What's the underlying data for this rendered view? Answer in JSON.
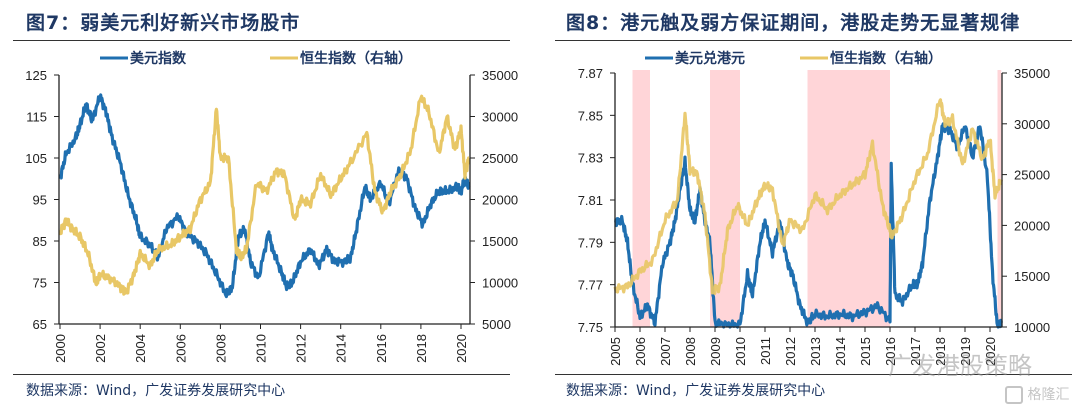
{
  "figure7": {
    "title": "图7：弱美元利好新兴市场股市",
    "source": "数据来源：Wind，广发证券发展研究中心"
  },
  "figure8": {
    "title": "图8：港元触及弱方保证期间，港股走势无显著规律",
    "source": "数据来源：Wind，广发证券发展研究中心"
  },
  "watermark": {
    "text": "广发港股策略",
    "logo_text": "格隆汇"
  },
  "colors": {
    "blue": "#1f6fb0",
    "yellow": "#e8c766",
    "band": "#ffd5d8",
    "axis": "#222222"
  },
  "chart_data": [
    {
      "type": "line",
      "title": "图7：弱美元利好新兴市场股市",
      "xlabel": "",
      "ylabel": "",
      "xlim": [
        2000,
        2020.5
      ],
      "ylim": [
        65,
        125
      ],
      "y2lim": [
        5000,
        35000
      ],
      "x_ticks": [
        "2000",
        "2002",
        "2004",
        "2006",
        "2008",
        "2010",
        "2012",
        "2014",
        "2016",
        "2018",
        "2020"
      ],
      "y_ticks": [
        "125",
        "115",
        "105",
        "95",
        "85",
        "75",
        "65"
      ],
      "y2_ticks": [
        "35000",
        "30000",
        "25000",
        "20000",
        "15000",
        "10000",
        "5000"
      ],
      "legend": [
        "美元指数",
        "恒生指数（右轴）"
      ],
      "legend_position": "top-center",
      "grid": false,
      "series": [
        {
          "name": "美元指数",
          "axis": "left",
          "color": "#1f6fb0",
          "x": [
            2000.0,
            2000.3,
            2000.8,
            2001.0,
            2001.3,
            2001.6,
            2002.0,
            2002.3,
            2002.6,
            2003.0,
            2003.4,
            2003.8,
            2004.0,
            2004.5,
            2004.9,
            2005.3,
            2005.9,
            2006.3,
            2006.8,
            2007.3,
            2007.8,
            2008.3,
            2008.6,
            2008.9,
            2009.2,
            2009.5,
            2009.9,
            2010.4,
            2010.6,
            2011.0,
            2011.3,
            2011.6,
            2012.0,
            2012.5,
            2012.9,
            2013.3,
            2013.7,
            2014.2,
            2014.5,
            2014.8,
            2015.2,
            2015.5,
            2016.0,
            2016.4,
            2016.9,
            2017.3,
            2017.7,
            2018.1,
            2018.5,
            2018.9,
            2019.3,
            2019.8,
            2020.0,
            2020.2,
            2020.4
          ],
          "values": [
            100,
            106,
            110,
            113,
            118,
            114,
            120,
            116,
            110,
            104,
            96,
            90,
            86,
            84,
            81,
            88,
            91,
            87,
            85,
            82,
            77,
            72,
            74,
            86,
            88,
            80,
            76,
            87,
            83,
            78,
            74,
            75,
            80,
            83,
            79,
            83,
            80,
            80,
            81,
            88,
            98,
            95,
            99,
            94,
            102,
            100,
            93,
            89,
            94,
            97,
            97,
            98,
            97,
            100,
            98
          ]
        },
        {
          "name": "恒生指数（右轴）",
          "axis": "right",
          "color": "#e8c766",
          "x": [
            2000.0,
            2000.3,
            2000.6,
            2001.0,
            2001.4,
            2001.8,
            2002.0,
            2002.5,
            2003.0,
            2003.3,
            2003.7,
            2004.0,
            2004.5,
            2004.9,
            2005.5,
            2006.0,
            2006.5,
            2007.0,
            2007.5,
            2007.8,
            2008.0,
            2008.4,
            2008.8,
            2009.0,
            2009.3,
            2009.8,
            2010.3,
            2010.8,
            2011.2,
            2011.7,
            2012.0,
            2012.5,
            2013.0,
            2013.5,
            2014.0,
            2014.5,
            2015.3,
            2015.7,
            2016.1,
            2016.5,
            2017.0,
            2017.5,
            2018.0,
            2018.4,
            2018.9,
            2019.3,
            2019.7,
            2020.0,
            2020.2,
            2020.4
          ],
          "values": [
            16000,
            17500,
            16500,
            15500,
            13500,
            9800,
            11000,
            10500,
            9500,
            8800,
            11000,
            13500,
            12000,
            14000,
            14500,
            15500,
            16500,
            20000,
            22000,
            31000,
            25000,
            25000,
            14000,
            13000,
            14000,
            22000,
            21000,
            23500,
            23000,
            17500,
            20000,
            19500,
            23000,
            20500,
            22500,
            24500,
            28000,
            21000,
            18500,
            21000,
            23000,
            26000,
            32500,
            30500,
            25500,
            30000,
            26000,
            28500,
            23000,
            25000
          ]
        }
      ]
    },
    {
      "type": "line",
      "title": "图8：港元触及弱方保证期间，港股走势无显著规律",
      "xlabel": "",
      "ylabel": "",
      "xlim": [
        2005,
        2020.5
      ],
      "ylim": [
        7.75,
        7.87
      ],
      "y2lim": [
        10000,
        35000
      ],
      "x_ticks": [
        "2005",
        "2006",
        "2007",
        "2008",
        "2009",
        "2010",
        "2011",
        "2012",
        "2013",
        "2014",
        "2015",
        "2016",
        "2017",
        "2018",
        "2019",
        "2020"
      ],
      "y_ticks": [
        "7.87",
        "7.85",
        "7.83",
        "7.81",
        "7.79",
        "7.77",
        "7.75"
      ],
      "y2_ticks": [
        "35000",
        "30000",
        "25000",
        "20000",
        "15000",
        "10000"
      ],
      "legend": [
        "美元兑港元",
        "恒生指数（右轴）"
      ],
      "legend_position": "top-center",
      "grid": false,
      "shaded_periods": [
        [
          2005.7,
          2006.4
        ],
        [
          2008.8,
          2010.0
        ],
        [
          2012.7,
          2016.0
        ],
        [
          2020.3,
          2020.45
        ]
      ],
      "series": [
        {
          "name": "美元兑港元",
          "axis": "left",
          "color": "#1f6fb0",
          "x": [
            2005.0,
            2005.3,
            2005.5,
            2005.7,
            2006.0,
            2006.3,
            2006.6,
            2006.9,
            2007.2,
            2007.4,
            2007.6,
            2007.8,
            2008.0,
            2008.2,
            2008.4,
            2008.6,
            2008.8,
            2009.0,
            2009.5,
            2010.0,
            2010.3,
            2010.5,
            2010.8,
            2011.0,
            2011.3,
            2011.6,
            2011.9,
            2012.1,
            2012.4,
            2012.7,
            2013.0,
            2013.5,
            2014.0,
            2014.5,
            2015.0,
            2015.5,
            2016.0,
            2016.05,
            2016.2,
            2016.5,
            2016.9,
            2017.1,
            2017.3,
            2017.6,
            2017.9,
            2018.1,
            2018.4,
            2018.7,
            2019.0,
            2019.3,
            2019.6,
            2019.9,
            2020.1,
            2020.3,
            2020.45
          ],
          "values": [
            7.8,
            7.8,
            7.79,
            7.77,
            7.755,
            7.76,
            7.752,
            7.78,
            7.79,
            7.8,
            7.815,
            7.828,
            7.805,
            7.8,
            7.815,
            7.8,
            7.79,
            7.752,
            7.751,
            7.751,
            7.775,
            7.765,
            7.79,
            7.8,
            7.785,
            7.8,
            7.78,
            7.775,
            7.76,
            7.752,
            7.756,
            7.755,
            7.756,
            7.755,
            7.757,
            7.76,
            7.753,
            7.826,
            7.765,
            7.762,
            7.77,
            7.77,
            7.78,
            7.81,
            7.83,
            7.845,
            7.843,
            7.835,
            7.845,
            7.83,
            7.845,
            7.82,
            7.775,
            7.75,
            7.752
          ]
        },
        {
          "name": "恒生指数（右轴）",
          "axis": "right",
          "color": "#e8c766",
          "x": [
            2005.0,
            2005.5,
            2006.0,
            2006.5,
            2007.0,
            2007.5,
            2007.8,
            2008.0,
            2008.3,
            2008.6,
            2008.9,
            2009.2,
            2009.5,
            2009.9,
            2010.3,
            2010.7,
            2011.0,
            2011.3,
            2011.7,
            2012.0,
            2012.5,
            2013.0,
            2013.5,
            2014.0,
            2014.5,
            2015.0,
            2015.3,
            2015.7,
            2016.0,
            2016.1,
            2016.5,
            2017.0,
            2017.5,
            2018.0,
            2018.2,
            2018.5,
            2018.9,
            2019.3,
            2019.7,
            2020.0,
            2020.2,
            2020.45
          ],
          "values": [
            13700,
            14000,
            15500,
            16500,
            20500,
            22500,
            31000,
            25500,
            25000,
            21000,
            13500,
            14000,
            19500,
            22000,
            20000,
            22500,
            24000,
            23500,
            18000,
            20500,
            19500,
            23000,
            21500,
            23000,
            24000,
            25000,
            28000,
            22000,
            19500,
            19000,
            21000,
            24500,
            27000,
            32500,
            30000,
            30500,
            26000,
            29500,
            26500,
            28500,
            23000,
            24500
          ]
        }
      ]
    }
  ]
}
